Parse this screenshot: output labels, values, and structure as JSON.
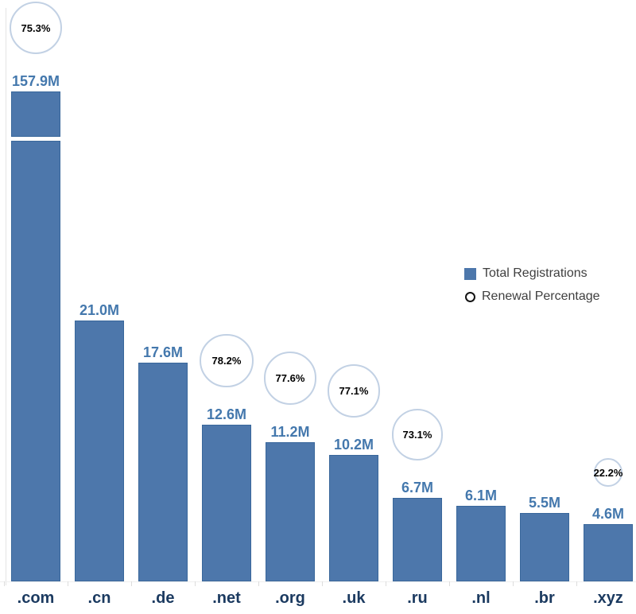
{
  "chart_data": {
    "type": "bar",
    "title": "",
    "categories": [
      ".com",
      ".cn",
      ".de",
      ".net",
      ".org",
      ".uk",
      ".ru",
      ".nl",
      ".br",
      ".xyz"
    ],
    "series": [
      {
        "name": "Total Registrations",
        "mark": "bar",
        "unit": "millions",
        "values": [
          157.9,
          21.0,
          17.6,
          12.6,
          11.2,
          10.2,
          6.7,
          6.1,
          5.5,
          4.6
        ],
        "labels": [
          "157.9M",
          "21.0M",
          "17.6M",
          "12.6M",
          "11.2M",
          "10.2M",
          "6.7M",
          "6.1M",
          "5.5M",
          "4.6M"
        ]
      },
      {
        "name": "Renewal Percentage",
        "mark": "circle",
        "unit": "%",
        "values": [
          75.3,
          null,
          null,
          78.2,
          77.6,
          77.1,
          73.1,
          null,
          null,
          22.2
        ],
        "labels": [
          "75.3%",
          null,
          null,
          "78.2%",
          "77.6%",
          "77.1%",
          "73.1%",
          null,
          null,
          "22.2%"
        ]
      }
    ],
    "legend": {
      "position": "middle-right",
      "items": [
        {
          "label": "Total Registrations",
          "marker": "square"
        },
        {
          "label": "Renewal Percentage",
          "marker": "circle"
        }
      ]
    },
    "broken_bar_category": ".com",
    "grid": false,
    "ylim_visible_millions": [
      0,
      21
    ],
    "colors": {
      "bar_fill": "#4d77ab",
      "bar_border": "#39679b",
      "value_label": "#4478ad",
      "axis_label": "#1b3a60",
      "circle_stroke": "#c2d1e4",
      "percent_text": "#000000",
      "legend_text": "#3f3f3f"
    }
  }
}
